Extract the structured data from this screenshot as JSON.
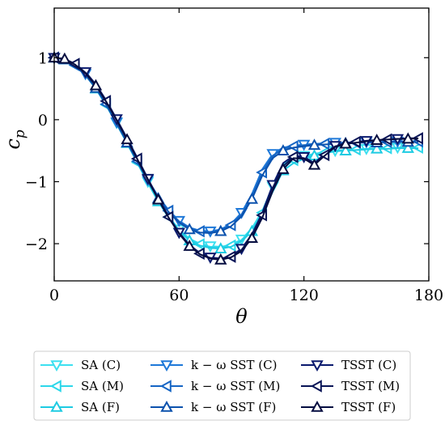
{
  "chart_data": {
    "type": "line",
    "xlabel": "θ",
    "ylabel": "c",
    "ylabel_sub": "p",
    "xlim": [
      0,
      180
    ],
    "ylim": [
      -2.6,
      1.8
    ],
    "xticks": [
      0,
      60,
      120,
      180
    ],
    "yticks": [
      1,
      0,
      -1,
      -2
    ],
    "ytick_labels": [
      "1",
      "0",
      "−1",
      "−2"
    ],
    "grid": false,
    "legend_position": "bottom, below plot, 3 columns",
    "series": [
      {
        "name": "SA (C)",
        "color": "#3de0f0",
        "marker": "triangle-down",
        "x": [
          0,
          5,
          10,
          15,
          20,
          25,
          30,
          35,
          40,
          45,
          50,
          55,
          60,
          65,
          70,
          75,
          80,
          85,
          90,
          95,
          100,
          105,
          110,
          115,
          120,
          125,
          130,
          135,
          140,
          145,
          150,
          155,
          160,
          165,
          170,
          175
        ],
        "y": [
          1.0,
          0.97,
          0.88,
          0.74,
          0.52,
          0.25,
          -0.05,
          -0.36,
          -0.68,
          -1.0,
          -1.3,
          -1.56,
          -1.77,
          -1.92,
          -2.0,
          -2.04,
          -2.05,
          -2.02,
          -1.93,
          -1.75,
          -1.47,
          -1.08,
          -0.72,
          -0.62,
          -0.58,
          -0.55,
          -0.52,
          -0.5,
          -0.49,
          -0.48,
          -0.47,
          -0.46,
          -0.46,
          -0.45,
          -0.45,
          -0.45
        ]
      },
      {
        "name": "SA (M)",
        "color": "#2cd7ea",
        "marker": "triangle-left",
        "x": [
          0,
          5,
          10,
          15,
          20,
          25,
          30,
          35,
          40,
          45,
          50,
          55,
          60,
          65,
          70,
          75,
          80,
          85,
          90,
          95,
          100,
          105,
          110,
          115,
          120,
          125,
          130,
          135,
          140,
          145,
          150,
          155,
          160,
          165,
          170,
          175
        ],
        "y": [
          1.0,
          0.97,
          0.88,
          0.73,
          0.51,
          0.24,
          -0.06,
          -0.37,
          -0.69,
          -1.01,
          -1.31,
          -1.57,
          -1.78,
          -1.93,
          -2.01,
          -2.05,
          -2.06,
          -2.03,
          -1.94,
          -1.77,
          -1.5,
          -1.12,
          -0.78,
          -0.65,
          -0.6,
          -0.56,
          -0.53,
          -0.5,
          -0.49,
          -0.48,
          -0.47,
          -0.46,
          -0.46,
          -0.45,
          -0.45,
          -0.45
        ]
      },
      {
        "name": "SA (F)",
        "color": "#1ecbe2",
        "marker": "triangle-up",
        "x": [
          0,
          5,
          10,
          15,
          20,
          25,
          30,
          35,
          40,
          45,
          50,
          55,
          60,
          65,
          70,
          75,
          80,
          85,
          90,
          95,
          100,
          105,
          110,
          115,
          120,
          125,
          130,
          135,
          140,
          145,
          150,
          155,
          160,
          165,
          170,
          175
        ],
        "y": [
          1.0,
          0.97,
          0.87,
          0.72,
          0.5,
          0.23,
          -0.07,
          -0.38,
          -0.7,
          -1.02,
          -1.32,
          -1.58,
          -1.8,
          -1.95,
          -2.03,
          -2.07,
          -2.08,
          -2.05,
          -1.96,
          -1.8,
          -1.53,
          -1.16,
          -0.82,
          -0.7,
          -0.63,
          -0.58,
          -0.54,
          -0.51,
          -0.5,
          -0.49,
          -0.48,
          -0.47,
          -0.47,
          -0.46,
          -0.46,
          -0.46
        ]
      },
      {
        "name": "k − ω SST (C)",
        "color": "#1e78d8",
        "marker": "triangle-down",
        "x": [
          0,
          5,
          10,
          15,
          20,
          25,
          30,
          35,
          40,
          45,
          50,
          55,
          60,
          65,
          70,
          75,
          80,
          85,
          90,
          95,
          100,
          105,
          110,
          115,
          120,
          125,
          130,
          135,
          140,
          145,
          150,
          155,
          160,
          165,
          170,
          175
        ],
        "y": [
          1.0,
          0.97,
          0.88,
          0.74,
          0.53,
          0.26,
          -0.04,
          -0.35,
          -0.66,
          -0.97,
          -1.24,
          -1.46,
          -1.63,
          -1.74,
          -1.79,
          -1.8,
          -1.77,
          -1.68,
          -1.5,
          -1.2,
          -0.8,
          -0.55,
          -0.45,
          -0.42,
          -0.4,
          -0.39,
          -0.38,
          -0.37,
          -0.37,
          -0.36,
          -0.36,
          -0.36,
          -0.35,
          -0.35,
          -0.35,
          -0.35
        ]
      },
      {
        "name": "k − ω SST (M)",
        "color": "#1565c4",
        "marker": "triangle-left",
        "x": [
          0,
          5,
          10,
          15,
          20,
          25,
          30,
          35,
          40,
          45,
          50,
          55,
          60,
          65,
          70,
          75,
          80,
          85,
          90,
          95,
          100,
          105,
          110,
          115,
          120,
          125,
          130,
          135,
          140,
          145,
          150,
          155,
          160,
          165,
          170,
          175
        ],
        "y": [
          1.0,
          0.97,
          0.88,
          0.73,
          0.52,
          0.25,
          -0.05,
          -0.36,
          -0.67,
          -0.98,
          -1.25,
          -1.47,
          -1.64,
          -1.75,
          -1.8,
          -1.81,
          -1.78,
          -1.7,
          -1.53,
          -1.24,
          -0.85,
          -0.58,
          -0.47,
          -0.43,
          -0.41,
          -0.4,
          -0.39,
          -0.38,
          -0.37,
          -0.37,
          -0.36,
          -0.36,
          -0.36,
          -0.35,
          -0.35,
          -0.35
        ]
      },
      {
        "name": "k − ω SST (F)",
        "color": "#0c52ad",
        "marker": "triangle-up",
        "x": [
          0,
          5,
          10,
          15,
          20,
          25,
          30,
          35,
          40,
          45,
          50,
          55,
          60,
          65,
          70,
          75,
          80,
          85,
          90,
          95,
          100,
          105,
          110,
          115,
          120,
          125,
          130,
          135,
          140,
          145,
          150,
          155,
          160,
          165,
          170,
          175
        ],
        "y": [
          1.0,
          0.97,
          0.87,
          0.72,
          0.51,
          0.24,
          -0.06,
          -0.37,
          -0.68,
          -0.99,
          -1.27,
          -1.49,
          -1.66,
          -1.77,
          -1.82,
          -1.83,
          -1.8,
          -1.72,
          -1.56,
          -1.28,
          -0.9,
          -0.62,
          -0.5,
          -0.45,
          -0.43,
          -0.41,
          -0.4,
          -0.39,
          -0.38,
          -0.37,
          -0.37,
          -0.37,
          -0.36,
          -0.36,
          -0.36,
          -0.36
        ]
      },
      {
        "name": "TSST (C)",
        "color": "#0a1a6e",
        "marker": "triangle-down",
        "x": [
          0,
          5,
          10,
          15,
          20,
          25,
          30,
          35,
          40,
          45,
          50,
          55,
          60,
          65,
          70,
          75,
          80,
          85,
          90,
          95,
          100,
          105,
          110,
          115,
          120,
          125,
          130,
          135,
          140,
          145,
          150,
          155,
          160,
          165,
          170,
          175
        ],
        "y": [
          1.0,
          0.98,
          0.9,
          0.77,
          0.57,
          0.31,
          0.01,
          -0.3,
          -0.62,
          -0.95,
          -1.27,
          -1.56,
          -1.82,
          -2.02,
          -2.15,
          -2.22,
          -2.24,
          -2.2,
          -2.08,
          -1.85,
          -1.5,
          -1.05,
          -0.7,
          -0.58,
          -0.6,
          -0.7,
          -0.55,
          -0.42,
          -0.38,
          -0.36,
          -0.34,
          -0.33,
          -0.32,
          -0.31,
          -0.3,
          -0.3
        ]
      },
      {
        "name": "TSST (M)",
        "color": "#081457",
        "marker": "triangle-left",
        "x": [
          0,
          5,
          10,
          15,
          20,
          25,
          30,
          35,
          40,
          45,
          50,
          55,
          60,
          65,
          70,
          75,
          80,
          85,
          90,
          95,
          100,
          105,
          110,
          115,
          120,
          125,
          130,
          135,
          140,
          145,
          150,
          155,
          160,
          165,
          170,
          175
        ],
        "y": [
          1.0,
          0.98,
          0.9,
          0.76,
          0.56,
          0.3,
          0.0,
          -0.31,
          -0.63,
          -0.96,
          -1.28,
          -1.57,
          -1.83,
          -2.03,
          -2.16,
          -2.23,
          -2.25,
          -2.21,
          -2.1,
          -1.88,
          -1.54,
          -1.1,
          -0.75,
          -0.6,
          -0.62,
          -0.72,
          -0.57,
          -0.43,
          -0.39,
          -0.36,
          -0.34,
          -0.33,
          -0.32,
          -0.31,
          -0.3,
          -0.3
        ]
      },
      {
        "name": "TSST (F)",
        "color": "#050d40",
        "marker": "triangle-up",
        "x": [
          0,
          5,
          10,
          15,
          20,
          25,
          30,
          35,
          40,
          45,
          50,
          55,
          60,
          65,
          70,
          75,
          80,
          85,
          90,
          95,
          100,
          105,
          110,
          115,
          120,
          125,
          130,
          135,
          140,
          145,
          150,
          155,
          160,
          165,
          170,
          175
        ],
        "y": [
          1.0,
          0.98,
          0.89,
          0.75,
          0.55,
          0.29,
          -0.01,
          -0.32,
          -0.64,
          -0.97,
          -1.29,
          -1.58,
          -1.84,
          -2.04,
          -2.17,
          -2.24,
          -2.26,
          -2.22,
          -2.12,
          -1.91,
          -1.58,
          -1.15,
          -0.8,
          -0.62,
          -0.63,
          -0.73,
          -0.58,
          -0.44,
          -0.39,
          -0.37,
          -0.35,
          -0.33,
          -0.32,
          -0.31,
          -0.31,
          -0.3
        ]
      }
    ]
  }
}
